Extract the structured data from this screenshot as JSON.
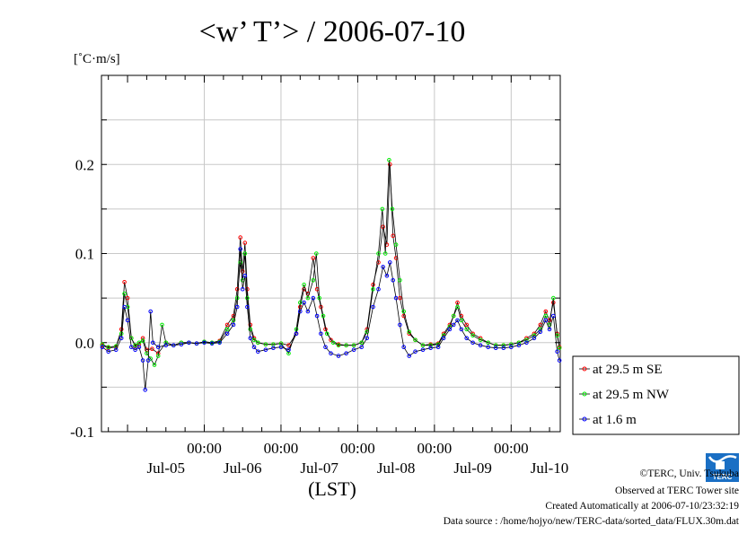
{
  "chart_data": {
    "type": "line",
    "title": "<w’ T’> / 2006-07-10",
    "unit_label": "[˚C·m/s]",
    "xlabel": "(LST)",
    "ylim": [
      -0.1,
      0.3
    ],
    "xlim_days": [
      4.66,
      10.64
    ],
    "y_ticks": [
      {
        "value": -0.1,
        "label": "-0.1"
      },
      {
        "value": 0.0,
        "label": "0.0"
      },
      {
        "value": 0.1,
        "label": "0.1"
      },
      {
        "value": 0.2,
        "label": "0.2"
      }
    ],
    "x_ticks_time": [
      {
        "day": 6,
        "label": "00:00"
      },
      {
        "day": 7,
        "label": "00:00"
      },
      {
        "day": 8,
        "label": "00:00"
      },
      {
        "day": 9,
        "label": "00:00"
      },
      {
        "day": 10,
        "label": "00:00"
      }
    ],
    "x_ticks_date": [
      {
        "day": 5.5,
        "label": "Jul-05"
      },
      {
        "day": 6.5,
        "label": "Jul-06"
      },
      {
        "day": 7.5,
        "label": "Jul-07"
      },
      {
        "day": 8.5,
        "label": "Jul-08"
      },
      {
        "day": 9.5,
        "label": "Jul-09"
      },
      {
        "day": 10.5,
        "label": "Jul-10"
      }
    ],
    "grid": true,
    "legend_position": "right-bottom",
    "series": [
      {
        "name": "at 29.5 m SE",
        "color": "#ff0000",
        "points": [
          [
            4.67,
            -0.003
          ],
          [
            4.75,
            -0.006
          ],
          [
            4.85,
            -0.005
          ],
          [
            4.92,
            0.015
          ],
          [
            4.96,
            0.068
          ],
          [
            5.0,
            0.05
          ],
          [
            5.05,
            0.005
          ],
          [
            5.1,
            -0.004
          ],
          [
            5.15,
            -0.002
          ],
          [
            5.2,
            0.005
          ],
          [
            5.25,
            -0.008
          ],
          [
            5.32,
            -0.007
          ],
          [
            5.4,
            -0.012
          ],
          [
            5.5,
            0.0
          ],
          [
            5.6,
            -0.003
          ],
          [
            5.7,
            0.0
          ],
          [
            5.8,
            0.0
          ],
          [
            5.9,
            -0.001
          ],
          [
            6.0,
            0.001
          ],
          [
            6.1,
            0.0
          ],
          [
            6.2,
            0.002
          ],
          [
            6.3,
            0.02
          ],
          [
            6.38,
            0.03
          ],
          [
            6.43,
            0.06
          ],
          [
            6.47,
            0.118
          ],
          [
            6.5,
            0.08
          ],
          [
            6.53,
            0.112
          ],
          [
            6.56,
            0.06
          ],
          [
            6.6,
            0.02
          ],
          [
            6.65,
            0.005
          ],
          [
            6.7,
            0.0
          ],
          [
            6.8,
            -0.002
          ],
          [
            6.9,
            -0.002
          ],
          [
            7.0,
            -0.001
          ],
          [
            7.1,
            -0.003
          ],
          [
            7.2,
            0.01
          ],
          [
            7.25,
            0.04
          ],
          [
            7.3,
            0.06
          ],
          [
            7.35,
            0.055
          ],
          [
            7.42,
            0.095
          ],
          [
            7.47,
            0.06
          ],
          [
            7.52,
            0.04
          ],
          [
            7.58,
            0.015
          ],
          [
            7.65,
            0.003
          ],
          [
            7.75,
            -0.002
          ],
          [
            7.85,
            -0.003
          ],
          [
            7.95,
            -0.003
          ],
          [
            8.05,
            0.0
          ],
          [
            8.12,
            0.015
          ],
          [
            8.2,
            0.065
          ],
          [
            8.27,
            0.09
          ],
          [
            8.33,
            0.13
          ],
          [
            8.38,
            0.11
          ],
          [
            8.42,
            0.2
          ],
          [
            8.46,
            0.12
          ],
          [
            8.5,
            0.095
          ],
          [
            8.55,
            0.05
          ],
          [
            8.6,
            0.03
          ],
          [
            8.67,
            0.01
          ],
          [
            8.75,
            0.003
          ],
          [
            8.85,
            -0.003
          ],
          [
            8.95,
            -0.002
          ],
          [
            9.05,
            -0.001
          ],
          [
            9.12,
            0.01
          ],
          [
            9.2,
            0.02
          ],
          [
            9.25,
            0.03
          ],
          [
            9.3,
            0.045
          ],
          [
            9.35,
            0.03
          ],
          [
            9.42,
            0.02
          ],
          [
            9.5,
            0.01
          ],
          [
            9.6,
            0.005
          ],
          [
            9.7,
            0.0
          ],
          [
            9.8,
            -0.003
          ],
          [
            9.9,
            -0.003
          ],
          [
            10.0,
            -0.002
          ],
          [
            10.1,
            0.0
          ],
          [
            10.2,
            0.005
          ],
          [
            10.3,
            0.01
          ],
          [
            10.38,
            0.02
          ],
          [
            10.45,
            0.035
          ],
          [
            10.5,
            0.025
          ],
          [
            10.55,
            0.045
          ],
          [
            10.6,
            0.01
          ],
          [
            10.63,
            -0.005
          ]
        ]
      },
      {
        "name": "at 29.5 m NW",
        "color": "#00ee00",
        "points": [
          [
            4.67,
            -0.002
          ],
          [
            4.75,
            -0.005
          ],
          [
            4.85,
            -0.004
          ],
          [
            4.92,
            0.01
          ],
          [
            4.96,
            0.055
          ],
          [
            5.0,
            0.04
          ],
          [
            5.05,
            0.005
          ],
          [
            5.1,
            -0.003
          ],
          [
            5.15,
            0.0
          ],
          [
            5.2,
            0.002
          ],
          [
            5.25,
            -0.012
          ],
          [
            5.3,
            -0.018
          ],
          [
            5.35,
            -0.025
          ],
          [
            5.4,
            -0.015
          ],
          [
            5.45,
            0.02
          ],
          [
            5.5,
            0.0
          ],
          [
            5.6,
            -0.003
          ],
          [
            5.7,
            0.0
          ],
          [
            5.8,
            0.0
          ],
          [
            5.9,
            -0.001
          ],
          [
            6.0,
            0.001
          ],
          [
            6.1,
            0.0
          ],
          [
            6.2,
            0.001
          ],
          [
            6.3,
            0.015
          ],
          [
            6.38,
            0.025
          ],
          [
            6.43,
            0.05
          ],
          [
            6.47,
            0.09
          ],
          [
            6.5,
            0.07
          ],
          [
            6.53,
            0.1
          ],
          [
            6.56,
            0.05
          ],
          [
            6.6,
            0.015
          ],
          [
            6.65,
            0.003
          ],
          [
            6.7,
            0.0
          ],
          [
            6.8,
            -0.002
          ],
          [
            6.9,
            -0.002
          ],
          [
            7.0,
            -0.001
          ],
          [
            7.1,
            -0.012
          ],
          [
            7.2,
            0.015
          ],
          [
            7.25,
            0.045
          ],
          [
            7.3,
            0.065
          ],
          [
            7.35,
            0.05
          ],
          [
            7.42,
            0.07
          ],
          [
            7.46,
            0.1
          ],
          [
            7.5,
            0.05
          ],
          [
            7.55,
            0.03
          ],
          [
            7.6,
            0.01
          ],
          [
            7.68,
            0.0
          ],
          [
            7.75,
            -0.003
          ],
          [
            7.85,
            -0.003
          ],
          [
            7.95,
            -0.003
          ],
          [
            8.05,
            0.0
          ],
          [
            8.12,
            0.012
          ],
          [
            8.2,
            0.06
          ],
          [
            8.27,
            0.1
          ],
          [
            8.32,
            0.15
          ],
          [
            8.36,
            0.1
          ],
          [
            8.41,
            0.205
          ],
          [
            8.45,
            0.15
          ],
          [
            8.5,
            0.11
          ],
          [
            8.55,
            0.07
          ],
          [
            8.6,
            0.035
          ],
          [
            8.67,
            0.012
          ],
          [
            8.75,
            0.003
          ],
          [
            8.85,
            -0.003
          ],
          [
            8.95,
            -0.003
          ],
          [
            9.05,
            -0.002
          ],
          [
            9.12,
            0.008
          ],
          [
            9.2,
            0.018
          ],
          [
            9.25,
            0.03
          ],
          [
            9.3,
            0.04
          ],
          [
            9.35,
            0.025
          ],
          [
            9.42,
            0.015
          ],
          [
            9.5,
            0.008
          ],
          [
            9.6,
            0.003
          ],
          [
            9.7,
            0.0
          ],
          [
            9.8,
            -0.003
          ],
          [
            9.9,
            -0.003
          ],
          [
            10.0,
            -0.002
          ],
          [
            10.1,
            0.0
          ],
          [
            10.2,
            0.003
          ],
          [
            10.3,
            0.008
          ],
          [
            10.38,
            0.015
          ],
          [
            10.45,
            0.03
          ],
          [
            10.5,
            0.02
          ],
          [
            10.55,
            0.05
          ],
          [
            10.6,
            0.008
          ],
          [
            10.63,
            -0.006
          ]
        ]
      },
      {
        "name": "at 1.6 m",
        "color": "#0000ff",
        "points": [
          [
            4.67,
            -0.005
          ],
          [
            4.75,
            -0.01
          ],
          [
            4.85,
            -0.008
          ],
          [
            4.92,
            0.005
          ],
          [
            4.96,
            0.04
          ],
          [
            5.0,
            0.025
          ],
          [
            5.05,
            -0.005
          ],
          [
            5.1,
            -0.008
          ],
          [
            5.15,
            -0.005
          ],
          [
            5.2,
            -0.02
          ],
          [
            5.23,
            -0.053
          ],
          [
            5.27,
            -0.02
          ],
          [
            5.3,
            0.035
          ],
          [
            5.33,
            0.0
          ],
          [
            5.4,
            -0.005
          ],
          [
            5.5,
            -0.003
          ],
          [
            5.6,
            -0.003
          ],
          [
            5.7,
            -0.002
          ],
          [
            5.8,
            0.0
          ],
          [
            5.9,
            -0.001
          ],
          [
            6.0,
            0.0
          ],
          [
            6.1,
            -0.001
          ],
          [
            6.2,
            0.0
          ],
          [
            6.3,
            0.01
          ],
          [
            6.38,
            0.02
          ],
          [
            6.43,
            0.04
          ],
          [
            6.47,
            0.105
          ],
          [
            6.5,
            0.06
          ],
          [
            6.53,
            0.075
          ],
          [
            6.56,
            0.04
          ],
          [
            6.6,
            0.005
          ],
          [
            6.65,
            -0.005
          ],
          [
            6.7,
            -0.01
          ],
          [
            6.8,
            -0.008
          ],
          [
            6.9,
            -0.006
          ],
          [
            7.0,
            -0.005
          ],
          [
            7.1,
            -0.008
          ],
          [
            7.2,
            0.01
          ],
          [
            7.25,
            0.035
          ],
          [
            7.3,
            0.045
          ],
          [
            7.35,
            0.035
          ],
          [
            7.42,
            0.05
          ],
          [
            7.47,
            0.03
          ],
          [
            7.52,
            0.01
          ],
          [
            7.58,
            -0.005
          ],
          [
            7.65,
            -0.012
          ],
          [
            7.75,
            -0.015
          ],
          [
            7.85,
            -0.012
          ],
          [
            7.95,
            -0.008
          ],
          [
            8.05,
            -0.005
          ],
          [
            8.12,
            0.005
          ],
          [
            8.2,
            0.04
          ],
          [
            8.27,
            0.06
          ],
          [
            8.33,
            0.085
          ],
          [
            8.38,
            0.075
          ],
          [
            8.42,
            0.09
          ],
          [
            8.46,
            0.07
          ],
          [
            8.5,
            0.05
          ],
          [
            8.55,
            0.02
          ],
          [
            8.6,
            -0.005
          ],
          [
            8.67,
            -0.015
          ],
          [
            8.75,
            -0.01
          ],
          [
            8.85,
            -0.008
          ],
          [
            8.95,
            -0.006
          ],
          [
            9.05,
            -0.005
          ],
          [
            9.12,
            0.005
          ],
          [
            9.2,
            0.015
          ],
          [
            9.25,
            0.02
          ],
          [
            9.3,
            0.025
          ],
          [
            9.35,
            0.015
          ],
          [
            9.42,
            0.005
          ],
          [
            9.5,
            0.0
          ],
          [
            9.6,
            -0.003
          ],
          [
            9.7,
            -0.005
          ],
          [
            9.8,
            -0.006
          ],
          [
            9.9,
            -0.006
          ],
          [
            10.0,
            -0.005
          ],
          [
            10.1,
            -0.003
          ],
          [
            10.2,
            0.0
          ],
          [
            10.3,
            0.005
          ],
          [
            10.38,
            0.012
          ],
          [
            10.45,
            0.025
          ],
          [
            10.5,
            0.015
          ],
          [
            10.55,
            0.03
          ],
          [
            10.6,
            -0.01
          ],
          [
            10.63,
            -0.02
          ]
        ]
      }
    ]
  },
  "logo": {
    "text": "TERC"
  },
  "footer": {
    "copyright": "©TERC, Univ. Tsukuba",
    "observed": "Observed at TERC Tower site",
    "created": "Created Automatically at 2006-07-10/23:32:19",
    "source": "Data source : /home/hojyo/new/TERC-data/sorted_data/FLUX.30m.dat"
  }
}
